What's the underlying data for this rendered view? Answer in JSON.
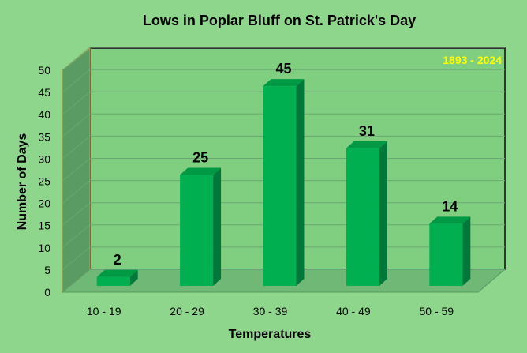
{
  "chart_data": {
    "type": "bar",
    "title": "Lows in Poplar Bluff on St. Patrick's Day",
    "annotation": "1893 - 2024",
    "xlabel": "Temperatures",
    "ylabel": "Number of Days",
    "categories": [
      "10 - 19",
      "20 - 29",
      "30 - 39",
      "40 - 49",
      "50 - 59"
    ],
    "values": [
      2,
      25,
      45,
      31,
      14
    ],
    "ylim": [
      0,
      50
    ],
    "yticks": [
      0,
      5,
      10,
      15,
      20,
      25,
      30,
      35,
      40,
      45,
      50
    ],
    "grid": true,
    "legend": "none",
    "colors": {
      "background": "#8fd68d",
      "plot_back_wall": "#80cf80",
      "side_wall": "#5a9a63",
      "floor": "#6fb876",
      "bar_front": "#00b050",
      "bar_side": "#00783a",
      "bar_top": "#009a45",
      "gridline": "#6aa872",
      "annotation": "#ffff00"
    }
  }
}
